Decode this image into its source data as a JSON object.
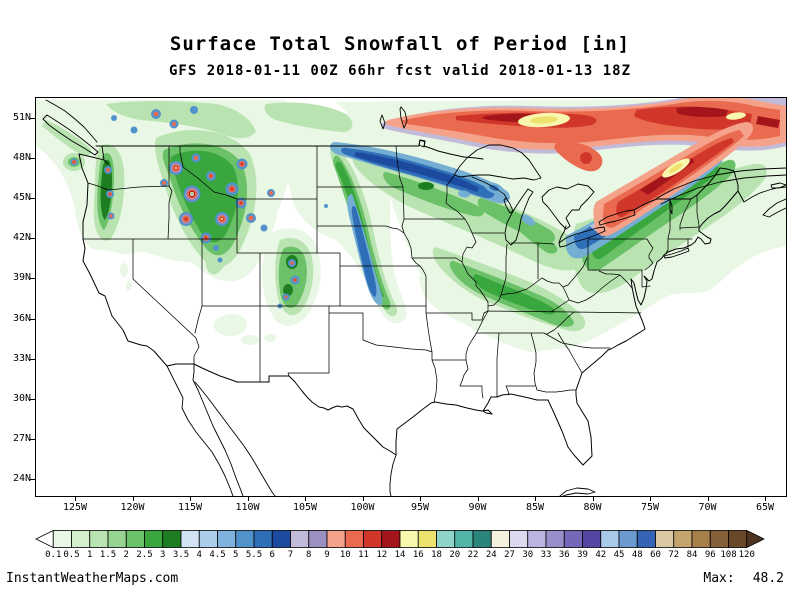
{
  "title": "Surface Total Snowfall of Period [in]",
  "subtitle": "GFS 2018-01-11 00Z 66hr fcst valid 2018-01-13 18Z",
  "footer": {
    "credit": "InstantWeatherMaps.com",
    "max_label": "Max:",
    "max_value": "48.2"
  },
  "axes": {
    "lat_ticks": [
      "51N",
      "48N",
      "45N",
      "42N",
      "39N",
      "36N",
      "33N",
      "30N",
      "27N",
      "24N"
    ],
    "lon_ticks": [
      "125W",
      "120W",
      "115W",
      "110W",
      "105W",
      "100W",
      "95W",
      "90W",
      "85W",
      "80W",
      "75W",
      "70W",
      "65W"
    ]
  },
  "colorbar": {
    "boundary_labels": [
      "0.1",
      "0.5",
      "1",
      "1.5",
      "2",
      "2.5",
      "3",
      "3.5",
      "4",
      "4.5",
      "5",
      "5.5",
      "6",
      "7",
      "8",
      "9",
      "10",
      "11",
      "12",
      "14",
      "16",
      "18",
      "20",
      "22",
      "24",
      "27",
      "30",
      "33",
      "36",
      "39",
      "42",
      "45",
      "48",
      "60",
      "72",
      "84",
      "96",
      "108",
      "120"
    ],
    "cell_colors": [
      "#ffffff",
      "#e9f7e5",
      "#d4efcc",
      "#b9e3b0",
      "#97d491",
      "#6ac168",
      "#3aa63e",
      "#1d7d21",
      "#d2e4f4",
      "#abcde9",
      "#7fb2dc",
      "#5292cb",
      "#2f6fb7",
      "#1c4a9e",
      "#c2bad9",
      "#9c8fc2",
      "#f5a28b",
      "#ea6a50",
      "#d0372a",
      "#a3151a",
      "#f9f6ae",
      "#ede26d",
      "#8fd4c8",
      "#52b5a5",
      "#2c857a",
      "#f4f1df",
      "#dcd9ee",
      "#bab5e0",
      "#968fcb",
      "#7468b8",
      "#5347a3",
      "#a9c9e9",
      "#6b9ad1",
      "#3464b3",
      "#dbc9a4",
      "#c3a36e",
      "#a67f4b",
      "#86603a",
      "#684829",
      "#4e3420"
    ]
  },
  "map_info": {
    "field": "Surface Total Snowfall",
    "units": "in",
    "max_value": 48.2
  }
}
